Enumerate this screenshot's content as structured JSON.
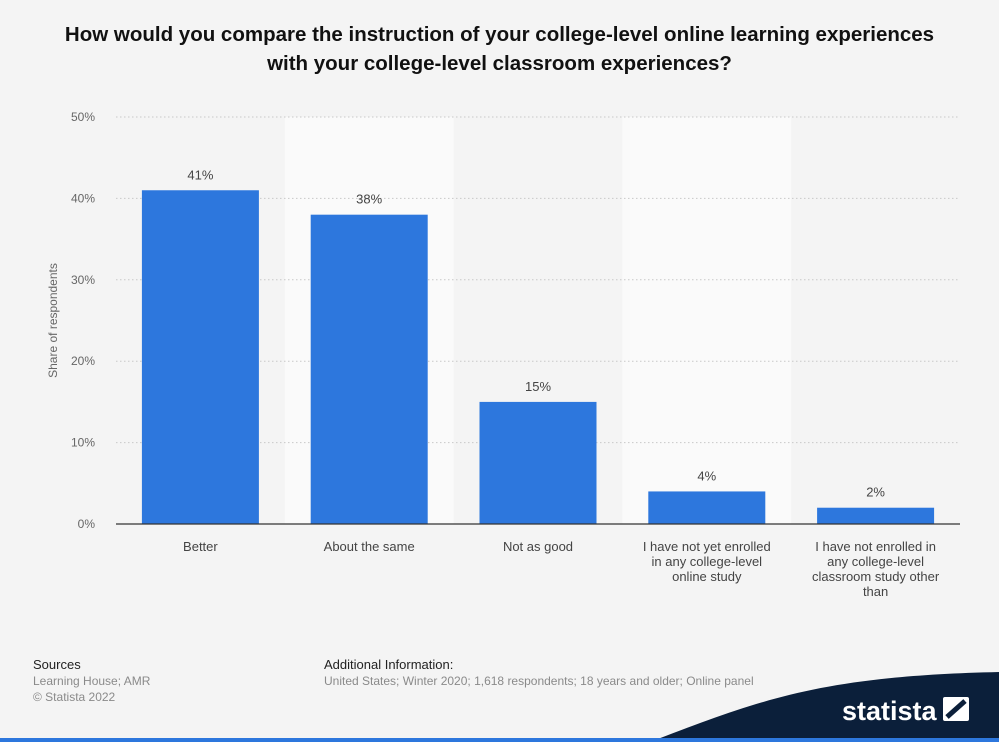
{
  "title": "How would you compare the instruction of your college-level online learning experiences with your college-level classroom experiences?",
  "footer": {
    "sources_heading": "Sources",
    "sources_line1": "Learning House; AMR",
    "sources_line2": "© Statista 2022",
    "info_heading": "Additional Information:",
    "info_text": "United States; Winter 2020; 1,618 respondents; 18 years and older; Online panel"
  },
  "brand": {
    "name": "statista",
    "accent": "#0b1f3a",
    "bar_color": "#2d77dd"
  },
  "chart_data": {
    "type": "bar",
    "categories": [
      [
        "Better"
      ],
      [
        "About the same"
      ],
      [
        "Not as good"
      ],
      [
        "I have not yet enrolled",
        "in any college-level",
        "online study"
      ],
      [
        "I have not enrolled in",
        "any college-level",
        "classroom study other",
        "than"
      ]
    ],
    "values": [
      41,
      38,
      15,
      4,
      2
    ],
    "value_labels": [
      "41%",
      "38%",
      "15%",
      "4%",
      "2%"
    ],
    "ylabel": "Share of respondents",
    "ylim": [
      0,
      50
    ],
    "yticks": [
      0,
      10,
      20,
      30,
      40,
      50
    ],
    "ytick_labels": [
      "0%",
      "10%",
      "20%",
      "30%",
      "40%",
      "50%"
    ],
    "grid": true,
    "bar_color": "#2d77dd"
  }
}
